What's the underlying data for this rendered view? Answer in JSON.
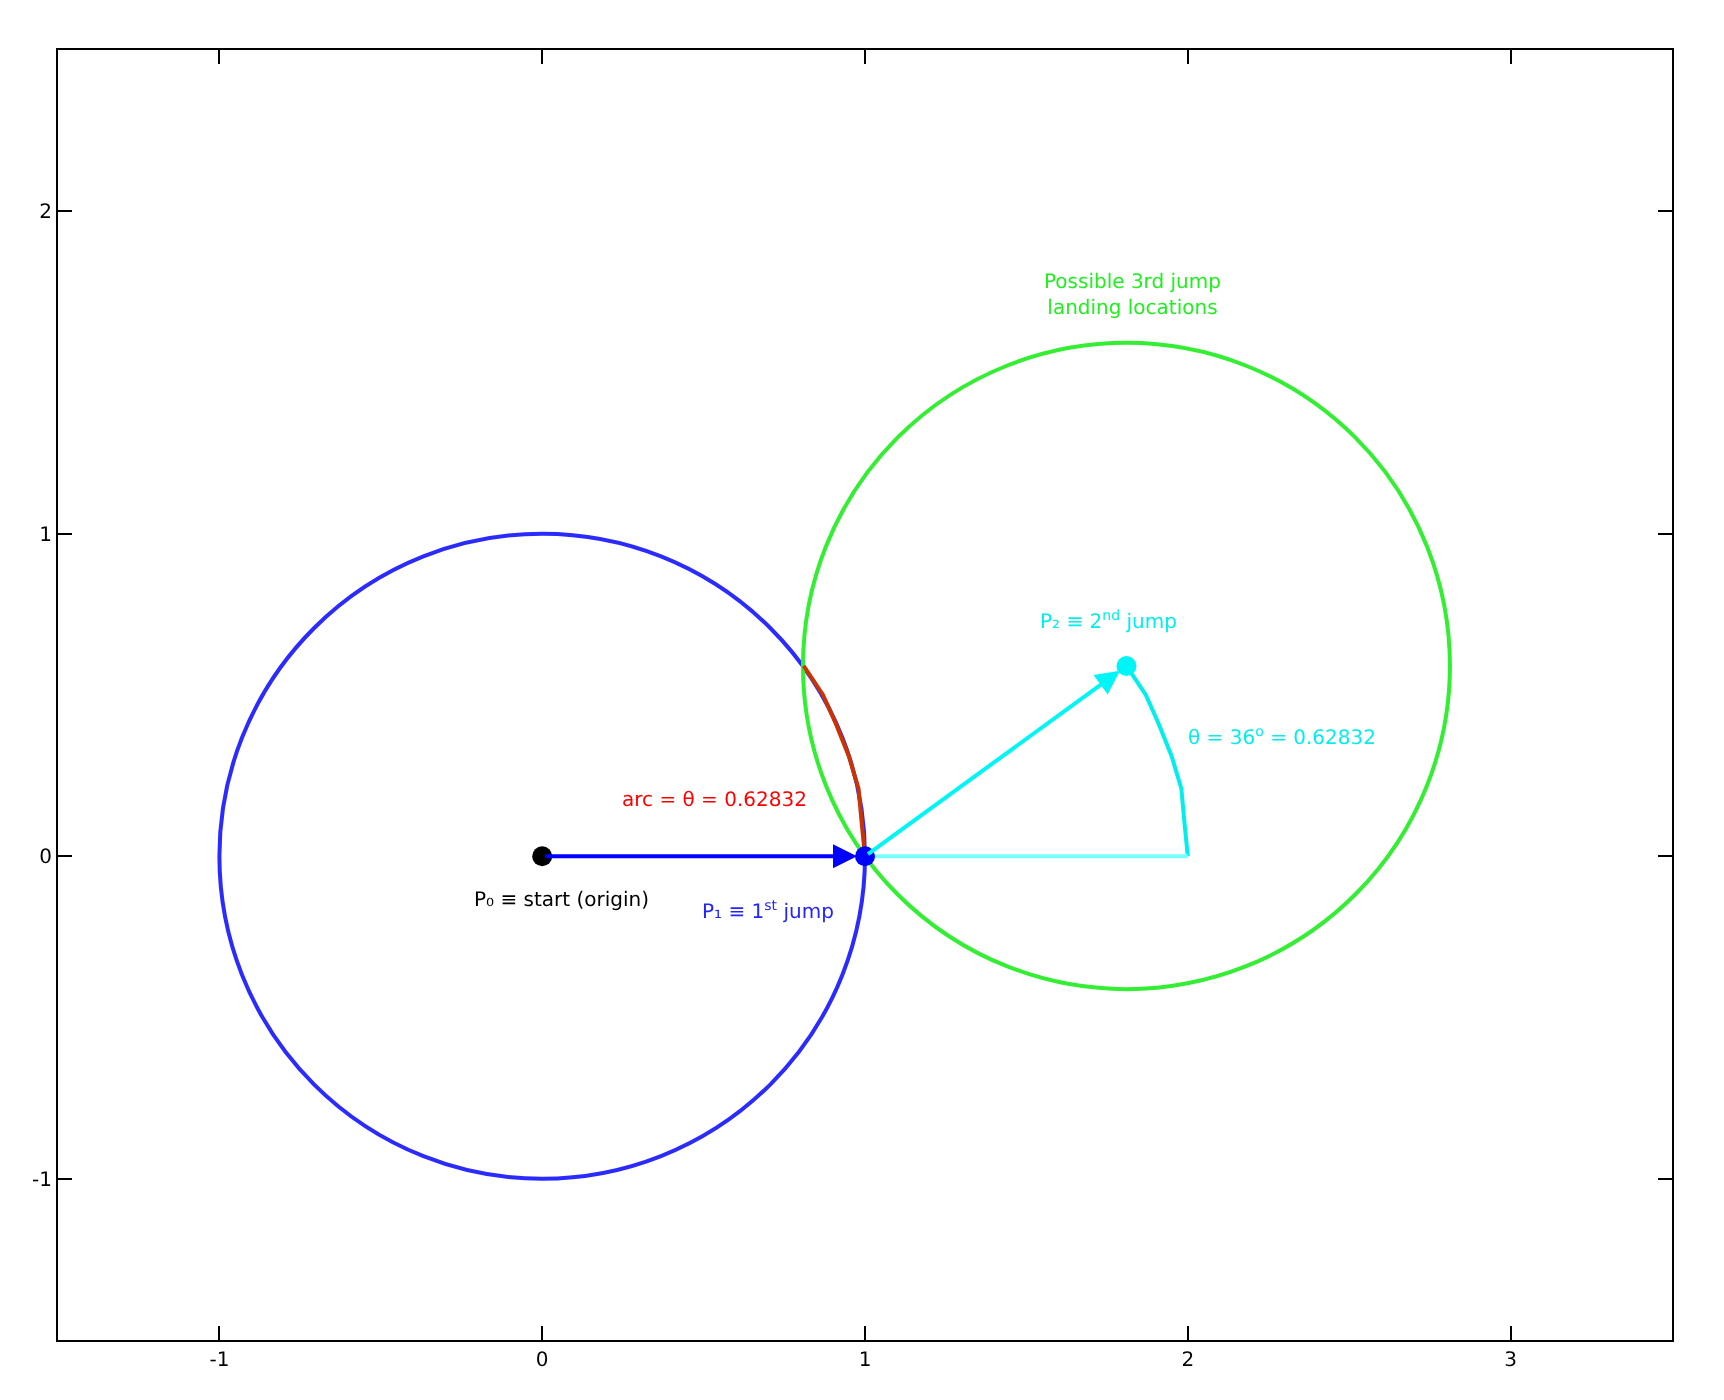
{
  "chart_data": {
    "type": "line",
    "xlim": [
      -1.5,
      3.5
    ],
    "ylim": [
      -1.5,
      2.5
    ],
    "xticks": [
      -1,
      0,
      1,
      2,
      3
    ],
    "yticks": [
      -1,
      0,
      1,
      2
    ],
    "grid": false,
    "line_style": "solid",
    "series": [
      {
        "color": "#cc3300",
        "x": [
          0.81,
          0.87,
          0.91,
          0.95,
          0.98,
          0.99,
          1
        ],
        "values": [
          0.59,
          0.5,
          0.41,
          0.31,
          0.21,
          0.1,
          0
        ]
      },
      {
        "color": "#00eeee",
        "x": [
          1.81,
          1.87,
          1.91,
          1.95,
          1.98,
          1.99,
          2
        ],
        "values": [
          0.59,
          0.5,
          0.41,
          0.31,
          0.21,
          0.1,
          0
        ]
      },
      {
        "color": "#77ffff",
        "x": [
          1,
          2
        ],
        "values": [
          0,
          0
        ]
      },
      {
        "type": "scatter",
        "colors": [
          "#000000",
          "#0000ff",
          "#00f6f6"
        ],
        "x": [
          0,
          1,
          1.81
        ],
        "values": [
          0,
          0,
          0.59
        ],
        "marker": "circle"
      }
    ],
    "annotations": [
      "P₀ ≡ start (origin)",
      "P₁ ≡ 1$^{st}$ jump",
      "arc = θ = 0.62832",
      "P₂ ≡ 2$^{nd}$ jump",
      "θ = 36$^{o}$ = 0.62832",
      "Possible 3rd jump\nlanding locations"
    ]
  }
}
